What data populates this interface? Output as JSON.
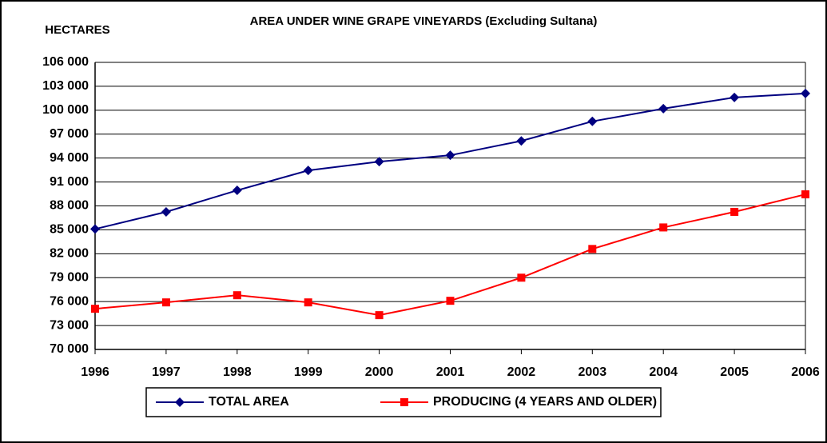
{
  "chart_data": {
    "type": "line",
    "title": "AREA UNDER WINE GRAPE VINEYARDS (Excluding Sultana)",
    "y_label": "HECTARES",
    "categories": [
      "1996",
      "1997",
      "1998",
      "1999",
      "2000",
      "2001",
      "2002",
      "2003",
      "2004",
      "2005",
      "2006"
    ],
    "series": [
      {
        "name": "TOTAL AREA",
        "color": "#000080",
        "marker": "diamond",
        "values": [
          85100,
          87250,
          89950,
          92450,
          93550,
          94350,
          96150,
          98600,
          100200,
          101600,
          102100
        ]
      },
      {
        "name": "PRODUCING (4 YEARS AND OLDER)",
        "color": "#ff0000",
        "marker": "square",
        "values": [
          75100,
          75900,
          76800,
          75900,
          74300,
          76100,
          79000,
          82600,
          85300,
          87250,
          89450
        ]
      }
    ],
    "ylim": [
      70000,
      106000
    ],
    "yticks": [
      {
        "value": 70000,
        "label": "70 000"
      },
      {
        "value": 73000,
        "label": "73 000"
      },
      {
        "value": 76000,
        "label": "76 000"
      },
      {
        "value": 79000,
        "label": "79 000"
      },
      {
        "value": 82000,
        "label": "82 000"
      },
      {
        "value": 85000,
        "label": "85 000"
      },
      {
        "value": 88000,
        "label": "88 000"
      },
      {
        "value": 91000,
        "label": "91 000"
      },
      {
        "value": 94000,
        "label": "94 000"
      },
      {
        "value": 97000,
        "label": "97 000"
      },
      {
        "value": 100000,
        "label": "100 000"
      },
      {
        "value": 103000,
        "label": "103 000"
      },
      {
        "value": 106000,
        "label": "106 000"
      }
    ],
    "grid": true,
    "legend": "bottom"
  }
}
